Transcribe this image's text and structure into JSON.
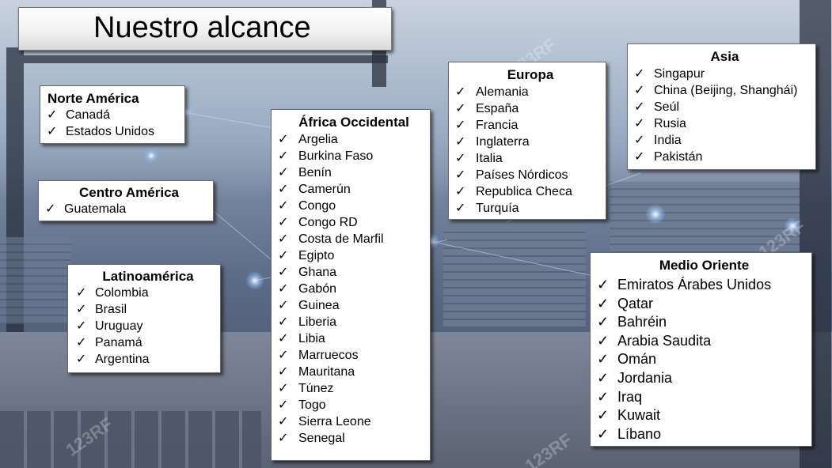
{
  "title": "Nuestro alcance",
  "check_glyph": "✓",
  "watermark_text": "123RF",
  "regions": {
    "norte_america": {
      "heading": "Norte América",
      "items": [
        "Canadá",
        "Estados Unidos"
      ]
    },
    "centro_america": {
      "heading": "Centro América",
      "items": [
        "Guatemala"
      ]
    },
    "latinoamerica": {
      "heading": "Latinoamérica",
      "items": [
        "Colombia",
        "Brasil",
        "Uruguay",
        "Panamá",
        "Argentina"
      ]
    },
    "africa_occidental": {
      "heading": "África Occidental",
      "items": [
        "Argelia",
        "Burkina Faso",
        "Benín",
        "Camerún",
        "Congo",
        "Congo RD",
        "Costa de Marfil",
        "Egipto",
        "Ghana",
        "Gabón",
        "Guinea",
        "Liberia",
        "Libia",
        "Marruecos",
        "Mauritana",
        "Túnez",
        "Togo",
        "Sierra Leone",
        "Senegal"
      ]
    },
    "europa": {
      "heading": "Europa",
      "items": [
        "Alemania",
        "España",
        "Francia",
        "Inglaterra",
        "Italia",
        "Países Nórdicos",
        "Republica Checa",
        "Turquía"
      ]
    },
    "asia": {
      "heading": "Asia",
      "items": [
        "Singapur",
        "China (Beijing, Shanghái)",
        "Seúl",
        "Rusia",
        "India",
        "Pakistán"
      ]
    },
    "medio_oriente": {
      "heading": "Medio Oriente",
      "items": [
        "Emiratos Árabes Unidos",
        "Qatar",
        "Bahréin",
        "Arabia Saudita",
        "Omán",
        "Jordania",
        "Iraq",
        "Kuwait",
        "Líbano"
      ]
    }
  }
}
